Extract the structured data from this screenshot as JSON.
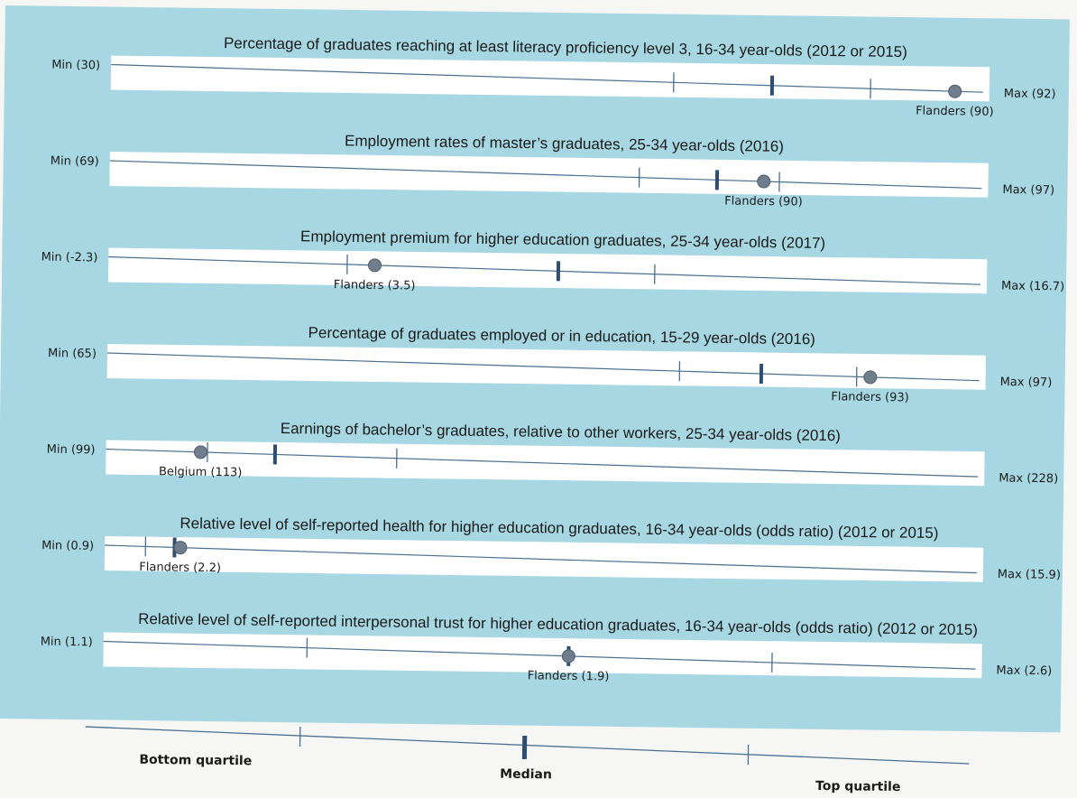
{
  "colors": {
    "panel_background": "#a7d7e2",
    "band": "#ffffff",
    "line": "#4a6f8f",
    "marker_fill": "#6f7d8c",
    "median_tick": "#2d4e72"
  },
  "chart_data": [
    {
      "type": "dot-range",
      "title": "Percentage of graduates reaching at least literacy proficiency level 3, 16-34 year-olds (2012 or 2015)",
      "min_label": "Min (30)",
      "max_label": "Max (92)",
      "min": 30,
      "max": 92,
      "q1": 70,
      "median": 77,
      "q3": 84,
      "point_label": "Flanders (90)",
      "point_value": 90
    },
    {
      "type": "dot-range",
      "title": "Employment rates of master’s graduates, 25-34 year-olds (2016)",
      "min_label": "Min (69)",
      "max_label": "Max (97)",
      "min": 69,
      "max": 97,
      "q1": 86,
      "median": 88.5,
      "q3": 90.5,
      "point_label": "Flanders (90)",
      "point_value": 90
    },
    {
      "type": "dot-range",
      "title": "Employment premium for higher education graduates, 25-34 year-olds (2017)",
      "min_label": "Min (-2.3)",
      "max_label": "Max (16.7)",
      "min": -2.3,
      "max": 16.7,
      "q1": 2.9,
      "median": 7.5,
      "q3": 9.6,
      "point_label": "Flanders (3.5)",
      "point_value": 3.5
    },
    {
      "type": "dot-range",
      "title": "Percentage of graduates employed or in education, 15-29 year-olds (2016)",
      "min_label": "Min (65)",
      "max_label": "Max (97)",
      "min": 65,
      "max": 97,
      "q1": 86,
      "median": 89,
      "q3": 92.5,
      "point_label": "Flanders (93)",
      "point_value": 93
    },
    {
      "type": "dot-range",
      "title": "Earnings of bachelor’s graduates, relative to other workers, 25-34 year-olds (2016)",
      "min_label": "Min (99)",
      "max_label": "Max (228)",
      "min": 99,
      "max": 228,
      "q1": 114,
      "median": 124,
      "q3": 142,
      "point_label": "Belgium (113)",
      "point_value": 113
    },
    {
      "type": "dot-range",
      "title": "Relative level of self-reported health for higher education graduates, 16-34 year-olds (odds ratio) (2012 or 2015)",
      "min_label": "Min (0.9)",
      "max_label": "Max (15.9)",
      "min": 0.9,
      "max": 15.9,
      "q1": 1.6,
      "median": 2.1,
      "q3": 2.1,
      "point_label": "Flanders (2.2)",
      "point_value": 2.2
    },
    {
      "type": "dot-range",
      "title": "Relative level of self-reported interpersonal trust for higher education graduates, 16-34 year-olds (odds ratio) (2012 or 2015)",
      "min_label": "Min (1.1)",
      "max_label": "Max (2.6)",
      "min": 1.1,
      "max": 2.6,
      "q1": 1.45,
      "median": 1.9,
      "q3": 2.25,
      "point_label": "Flanders (1.9)",
      "point_value": 1.9
    }
  ],
  "legend": {
    "bottom_label": "Bottom quartile",
    "median_label": "Median",
    "top_label": "Top quartile"
  }
}
